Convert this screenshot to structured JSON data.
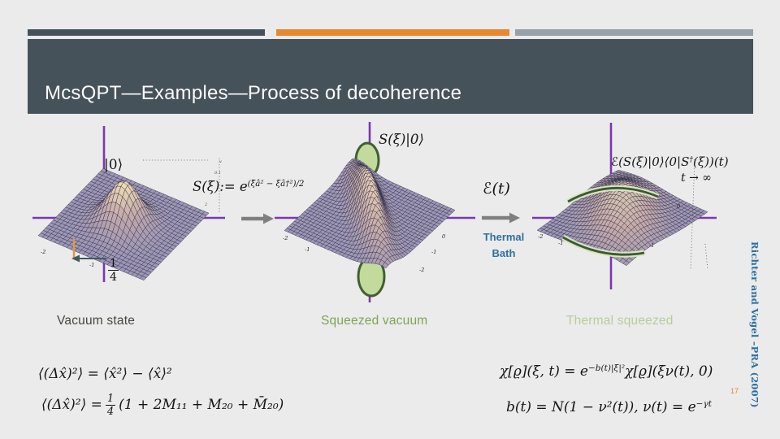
{
  "slide": {
    "title": "McsQPT—Examples—Process of decoherence",
    "page_number": "17",
    "citation": "Richter and Vogel –PRA (2007)",
    "colors": {
      "background": "#ebebeb",
      "band": "#46525a",
      "accent_orange": "#e8872e",
      "accent_gray": "#97a1a8",
      "axis_purple": "#7a38ae",
      "bath_blue": "#2c70a0",
      "caption_green": "#7da457",
      "caption_pale_green": "#b9cc9c",
      "page_orange": "#e08a3c"
    }
  },
  "icons": {
    "transition_arrow_1": "right-arrow",
    "transition_arrow_2": "right-arrow",
    "variance_arrow": "left-arrow"
  },
  "plots": {
    "vacuum": {
      "type": "3d-wigner-surface",
      "state_label": "|0⟩",
      "caption": "Vacuum state",
      "height_frac": {
        "num": "1",
        "den": "4"
      },
      "ticks": [
        "-2",
        "-1"
      ],
      "inset_labels": [
        "v",
        "0.1",
        "2"
      ]
    },
    "squeezed": {
      "type": "3d-wigner-surface",
      "state_label": "S(ξ)|0⟩",
      "caption": "Squeezed vacuum",
      "ticks": [
        "-2",
        "-1",
        "0",
        "-1",
        "-2"
      ]
    },
    "thermal": {
      "type": "3d-wigner-surface",
      "state_label_pre": "ℰ(S(ξ)|0⟩⟨0|S",
      "state_label_sup": "†",
      "state_label_post": "(ξ))(t)",
      "limit_label": "t → ∞",
      "caption": "Thermal squeezed",
      "ticks": [
        "-2",
        "-1",
        "0",
        "-1"
      ]
    }
  },
  "transitions": {
    "squeeze": {
      "formula_base": "S(ξ):= e",
      "formula_exp": "(ξ̄â² − ξâ†²)/2"
    },
    "decohere": {
      "channel_label": "ℰ(t)",
      "bath_label": "Thermal Bath"
    }
  },
  "equations": {
    "variance_def": "⟨(Δx̂)²⟩ = ⟨x̂²⟩ − ⟨x̂⟩²",
    "variance_pre": "⟨(Δx̂)²⟩ =",
    "variance_frac": {
      "num": "1",
      "den": "4"
    },
    "variance_post": "(1 + 2M₁₁ + M₂₀ + M̄₂₀)",
    "chi_pre": "χ[ϱ](ξ, t) = e",
    "chi_exp": "−b(t)|ξ|²",
    "chi_post": "χ[ϱ](ξν(t), 0)",
    "bt_pre": "b(t) = N(1 − ν²(t)), ν(t) = e",
    "bt_exp": "−γt"
  }
}
